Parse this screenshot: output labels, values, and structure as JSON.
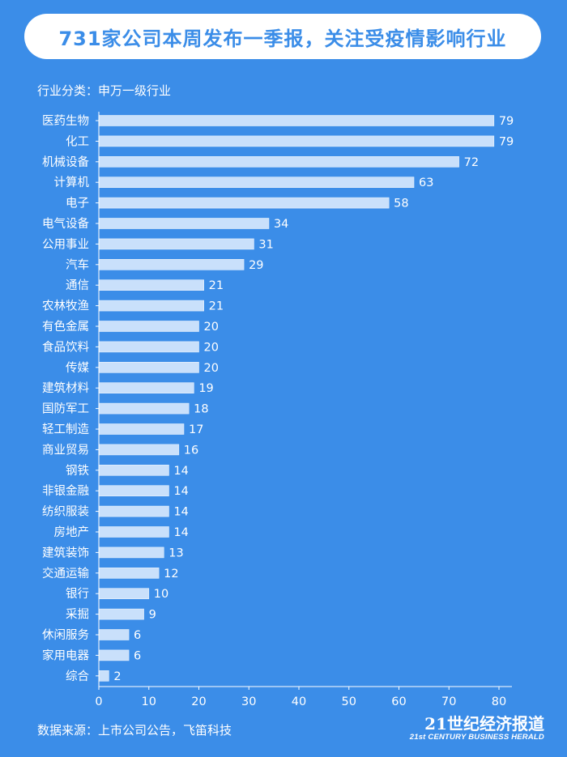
{
  "title": "731家公司本周发布一季报，关注受疫情影响行业",
  "subtitle": "行业分类：申万一级行业",
  "source": "数据来源：上市公司公告，飞笛科技",
  "logo": {
    "main": "21世纪经济报道",
    "sub": "21st CENTURY BUSINESS HERALD"
  },
  "colors": {
    "background": "#3b8de8",
    "bar": "#c9e0fb",
    "text": "#ffffff",
    "title_text": "#3b8de8"
  },
  "chart_data": {
    "type": "bar",
    "orientation": "horizontal",
    "categories": [
      "医药生物",
      "化工",
      "机械设备",
      "计算机",
      "电子",
      "电气设备",
      "公用事业",
      "汽车",
      "通信",
      "农林牧渔",
      "有色金属",
      "食品饮料",
      "传媒",
      "建筑材料",
      "国防军工",
      "轻工制造",
      "商业贸易",
      "钢铁",
      "非银金融",
      "纺织服装",
      "房地产",
      "建筑装饰",
      "交通运输",
      "银行",
      "采掘",
      "休闲服务",
      "家用电器",
      "综合"
    ],
    "values": [
      79,
      79,
      72,
      63,
      58,
      34,
      31,
      29,
      21,
      21,
      20,
      20,
      20,
      19,
      18,
      17,
      16,
      14,
      14,
      14,
      14,
      13,
      12,
      10,
      9,
      6,
      6,
      2
    ],
    "xlim": [
      0,
      80
    ],
    "xticks": [
      0,
      10,
      20,
      30,
      40,
      50,
      60,
      70,
      80
    ],
    "grid": false,
    "data_labels": true
  }
}
